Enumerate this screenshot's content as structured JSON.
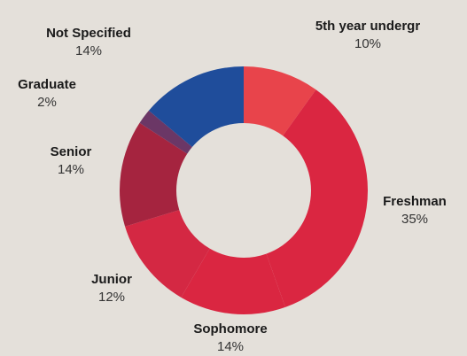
{
  "chart_data": {
    "type": "donut",
    "categories": [
      "5th year undergr",
      "Freshman",
      "Sophomore",
      "Junior",
      "Senior",
      "Graduate",
      "Not Specified"
    ],
    "values": [
      10,
      35,
      14,
      12,
      14,
      2,
      14
    ],
    "value_labels": [
      "10%",
      "35%",
      "14%",
      "12%",
      "14%",
      "2%",
      "14%"
    ],
    "colors": [
      "#e8444b",
      "#da2641",
      "#da2641",
      "#d42843",
      "#a5243f",
      "#6b3766",
      "#1f4d9b"
    ]
  }
}
